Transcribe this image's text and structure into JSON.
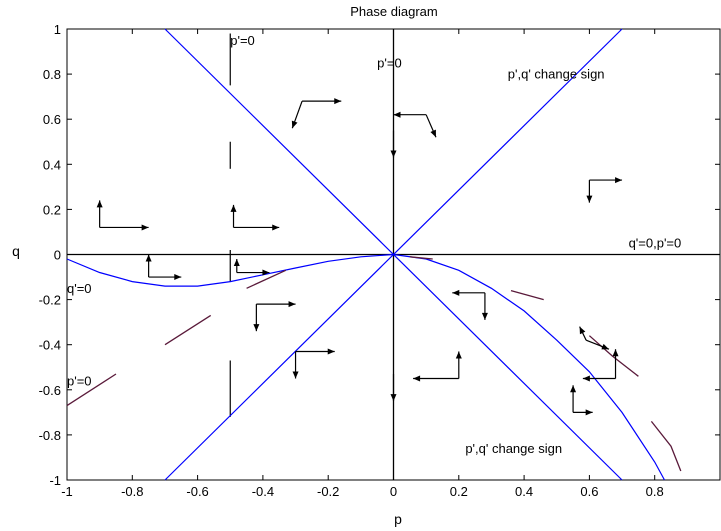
{
  "chart_data": {
    "type": "line",
    "title": "Phase diagram",
    "xlabel": "p",
    "ylabel": "q",
    "xlim": [
      -1,
      1
    ],
    "ylim": [
      -1,
      1
    ],
    "xticks": [
      -1,
      -0.8,
      -0.6,
      -0.4,
      -0.2,
      0,
      0.2,
      0.4,
      0.6,
      0.8
    ],
    "xtick_labels": [
      "-1",
      "-0.8",
      "-0.6",
      "-0.4",
      "-0.2",
      "0",
      "0.2",
      "0.4",
      "0.6",
      "0.8"
    ],
    "yticks": [
      -1,
      -0.8,
      -0.6,
      -0.4,
      -0.2,
      0,
      0.2,
      0.4,
      0.6,
      0.8,
      1
    ],
    "ytick_labels": [
      "-1",
      "-0.8",
      "-0.6",
      "-0.4",
      "-0.2",
      "0",
      "0.2",
      "0.4",
      "0.6",
      "0.8",
      "1"
    ],
    "grid": false,
    "colors": {
      "curve": "#0000ff",
      "trajectory": "#5a1a3a",
      "axis": "#000000"
    },
    "curves": [
      {
        "points": [
          [
            -0.7,
            1
          ],
          [
            0.7,
            -1
          ]
        ]
      },
      {
        "points": [
          [
            -0.7,
            -1
          ],
          [
            0.7,
            1
          ]
        ]
      },
      {
        "points": [
          [
            -1,
            -0.02
          ],
          [
            -0.9,
            -0.08
          ],
          [
            -0.8,
            -0.12
          ],
          [
            -0.7,
            -0.14
          ],
          [
            -0.6,
            -0.14
          ],
          [
            -0.5,
            -0.12
          ],
          [
            -0.4,
            -0.09
          ],
          [
            -0.3,
            -0.06
          ],
          [
            -0.2,
            -0.03
          ],
          [
            -0.1,
            -0.01
          ],
          [
            0,
            0
          ],
          [
            0.1,
            -0.02
          ],
          [
            0.2,
            -0.07
          ],
          [
            0.3,
            -0.15
          ],
          [
            0.4,
            -0.25
          ],
          [
            0.5,
            -0.38
          ],
          [
            0.6,
            -0.52
          ],
          [
            0.7,
            -0.7
          ],
          [
            0.8,
            -0.92
          ],
          [
            0.83,
            -1
          ]
        ]
      }
    ],
    "reference_lines": [
      {
        "orientation": "vertical",
        "x": 0,
        "from": -1,
        "to": 1
      },
      {
        "orientation": "horizontal",
        "y": 0,
        "from": -1,
        "to": 1
      }
    ],
    "dashed_segments": [
      {
        "x": -0.5,
        "from": 0.75,
        "to": 0.98
      },
      {
        "x": -0.5,
        "from": 0.38,
        "to": 0.5
      },
      {
        "x": -0.5,
        "from": -0.12,
        "to": 0.02
      },
      {
        "x": -0.5,
        "from": -0.72,
        "to": -0.47
      }
    ],
    "trajectories": [
      {
        "points": [
          [
            -1,
            -0.67
          ],
          [
            -0.85,
            -0.53
          ]
        ]
      },
      {
        "points": [
          [
            -0.7,
            -0.4
          ],
          [
            -0.56,
            -0.27
          ]
        ]
      },
      {
        "points": [
          [
            -0.45,
            -0.15
          ],
          [
            -0.33,
            -0.07
          ]
        ]
      },
      {
        "points": [
          [
            0.05,
            -0.01
          ],
          [
            0.12,
            -0.02
          ]
        ]
      },
      {
        "points": [
          [
            0.36,
            -0.16
          ],
          [
            0.46,
            -0.2
          ]
        ]
      },
      {
        "points": [
          [
            0.6,
            -0.36
          ],
          [
            0.67,
            -0.45
          ],
          [
            0.75,
            -0.54
          ]
        ]
      },
      {
        "points": [
          [
            0.79,
            -0.74
          ],
          [
            0.85,
            -0.85
          ],
          [
            0.88,
            -0.96
          ]
        ]
      }
    ],
    "arrows": [
      {
        "x": -0.9,
        "y": 0.12,
        "dx": 0.15,
        "dy": 0,
        "dir2x": 0,
        "dir2y": 0.12
      },
      {
        "x": -0.28,
        "y": 0.68,
        "dx": 0.12,
        "dy": 0,
        "dir2x": -0.03,
        "dir2y": -0.12
      },
      {
        "x": 0.1,
        "y": 0.62,
        "dx": -0.1,
        "dy": 0,
        "dir2x": 0.03,
        "dir2y": -0.1
      },
      {
        "x": 0.6,
        "y": 0.33,
        "dx": 0,
        "dy": -0.1,
        "dir2x": 0.1,
        "dir2y": 0
      },
      {
        "x": -0.49,
        "y": 0.12,
        "dx": 0.14,
        "dy": 0,
        "dir2x": 0,
        "dir2y": 0.1
      },
      {
        "x": 0,
        "y": 0.55,
        "dx": 0,
        "dy": -0.12,
        "dir2x": 0,
        "dir2y": 0
      },
      {
        "x": -0.75,
        "y": -0.1,
        "dx": 0.1,
        "dy": 0,
        "dir2x": 0,
        "dir2y": 0.1
      },
      {
        "x": -0.48,
        "y": -0.08,
        "dx": 0.1,
        "dy": 0,
        "dir2x": 0,
        "dir2y": 0.06
      },
      {
        "x": -0.42,
        "y": -0.22,
        "dx": 0.12,
        "dy": 0,
        "dir2x": 0,
        "dir2y": -0.12
      },
      {
        "x": 0.28,
        "y": -0.17,
        "dx": -0.1,
        "dy": 0,
        "dir2x": 0,
        "dir2y": -0.12
      },
      {
        "x": -0.3,
        "y": -0.43,
        "dx": 0.12,
        "dy": 0,
        "dir2x": 0,
        "dir2y": -0.12
      },
      {
        "x": 0,
        "y": -0.53,
        "dx": 0,
        "dy": -0.12,
        "dir2x": 0,
        "dir2y": 0
      },
      {
        "x": 0.55,
        "y": -0.7,
        "dx": 0.06,
        "dy": 0,
        "dir2x": 0,
        "dir2y": 0.12
      },
      {
        "x": 0.68,
        "y": -0.55,
        "dx": -0.1,
        "dy": 0,
        "dir2x": 0,
        "dir2y": 0.13
      },
      {
        "x": 0.2,
        "y": -0.55,
        "dx": -0.14,
        "dy": 0,
        "dir2x": 0,
        "dir2y": 0.12
      },
      {
        "x": 0.59,
        "y": -0.38,
        "dx": 0.07,
        "dy": -0.04,
        "dir2x": -0.02,
        "dir2y": 0.06
      }
    ],
    "annotations": [
      {
        "text": "p'=0",
        "x": -0.5,
        "y": 0.93,
        "anchor": "start"
      },
      {
        "text": "p'=0",
        "x": -0.05,
        "y": 0.83,
        "anchor": "start"
      },
      {
        "text": "p',q' change sign",
        "x": 0.35,
        "y": 0.78,
        "anchor": "start"
      },
      {
        "text": "q'=0,p'=0",
        "x": 0.72,
        "y": 0.03,
        "anchor": "start"
      },
      {
        "text": "q'=0",
        "x": -1,
        "y": -0.17,
        "anchor": "start"
      },
      {
        "text": "p'=0",
        "x": -1,
        "y": -0.58,
        "anchor": "start"
      },
      {
        "text": "p',q' change sign",
        "x": 0.22,
        "y": -0.88,
        "anchor": "start"
      }
    ]
  }
}
